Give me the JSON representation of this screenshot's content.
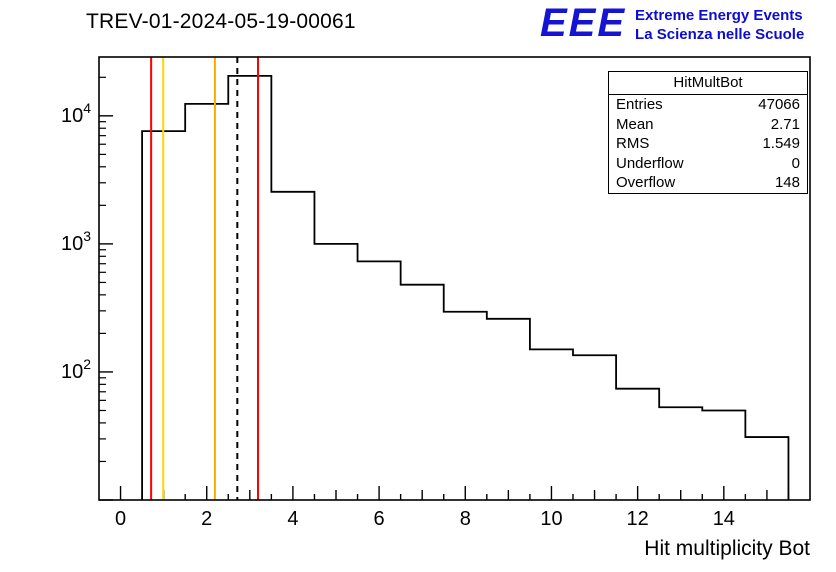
{
  "title": "TREV-01-2024-05-19-00061",
  "logo": {
    "acronym": "EEE",
    "line1": "Extreme Energy Events",
    "line2": "La Scienza nelle Scuole"
  },
  "colors": {
    "brand_blue": "#1414d2",
    "logo_text_blue": "#0d0dcf",
    "marker_red": "#ff0000",
    "marker_yellow": "#ffd400",
    "marker_orange": "#ffa800",
    "histogram_line": "#000000"
  },
  "stats": {
    "title": "HitMultBot",
    "rows": [
      {
        "label": "Entries",
        "value": "47066"
      },
      {
        "label": "Mean",
        "value": "2.71"
      },
      {
        "label": "RMS",
        "value": "1.549"
      },
      {
        "label": "Underflow",
        "value": "0"
      },
      {
        "label": "Overflow",
        "value": "148"
      }
    ]
  },
  "chart_data": {
    "type": "bar",
    "title": "TREV-01-2024-05-19-00061",
    "xlabel": "Hit multiplicity Bot",
    "ylabel": "",
    "y_scale": "log",
    "x_range": [
      -0.5,
      16
    ],
    "y_range": [
      10,
      28800
    ],
    "grid": false,
    "x_ticks_labeled": [
      0,
      2,
      4,
      6,
      8,
      10,
      12,
      14
    ],
    "bin_edges": [
      0.5,
      1.5,
      2.5,
      3.5,
      4.5,
      5.5,
      6.5,
      7.5,
      8.5,
      9.5,
      10.5,
      11.5,
      12.5,
      13.5,
      14.5,
      15.5
    ],
    "counts": [
      7600,
      12400,
      20500,
      2550,
      1000,
      730,
      480,
      295,
      260,
      150,
      135,
      74,
      53,
      50,
      31
    ],
    "vlines": [
      {
        "x": 0.71,
        "color": "#ff0000",
        "style": "solid"
      },
      {
        "x": 0.99,
        "color": "#ffd400",
        "style": "solid"
      },
      {
        "x": 2.19,
        "color": "#ffa800",
        "style": "solid"
      },
      {
        "x": 2.71,
        "color": "#000000",
        "style": "dashed"
      },
      {
        "x": 3.19,
        "color": "#ff0000",
        "style": "solid"
      }
    ]
  }
}
